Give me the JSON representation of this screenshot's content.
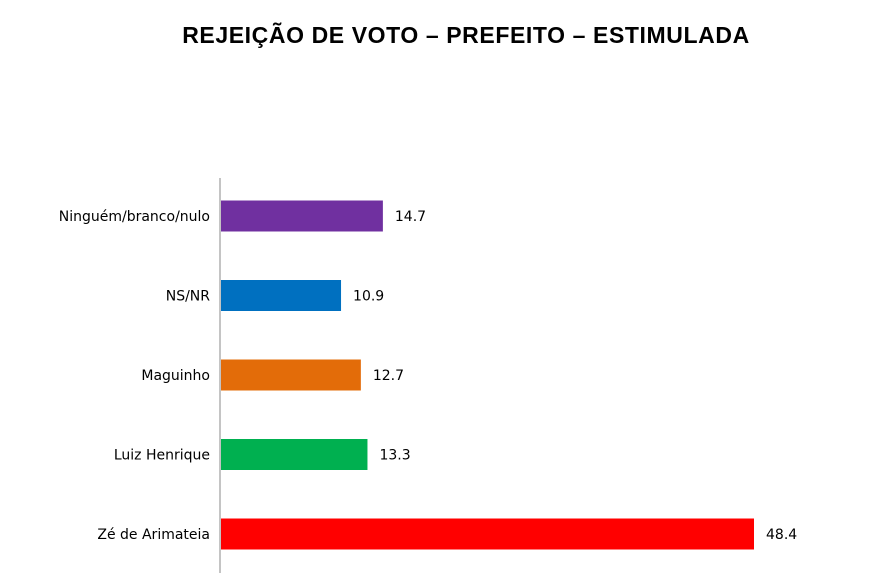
{
  "chart_data": {
    "type": "bar",
    "orientation": "horizontal",
    "title": "REJEIÇÃO DE VOTO – PREFEITO – ESTIMULADA",
    "categories": [
      "Ninguém/branco/nulo",
      "NS/NR",
      "Maguinho",
      "Luiz Henrique",
      "Zé de Arimateia"
    ],
    "values": [
      14.7,
      10.9,
      12.7,
      13.3,
      48.4
    ],
    "value_labels": [
      "14.7",
      "10.9",
      "12.7",
      "13.3",
      "48.4"
    ],
    "colors": [
      "#7030A0",
      "#0070C0",
      "#E36C09",
      "#00B050",
      "#FF0000"
    ],
    "xlim": [
      0,
      50
    ],
    "grid": false,
    "legend": "none"
  }
}
